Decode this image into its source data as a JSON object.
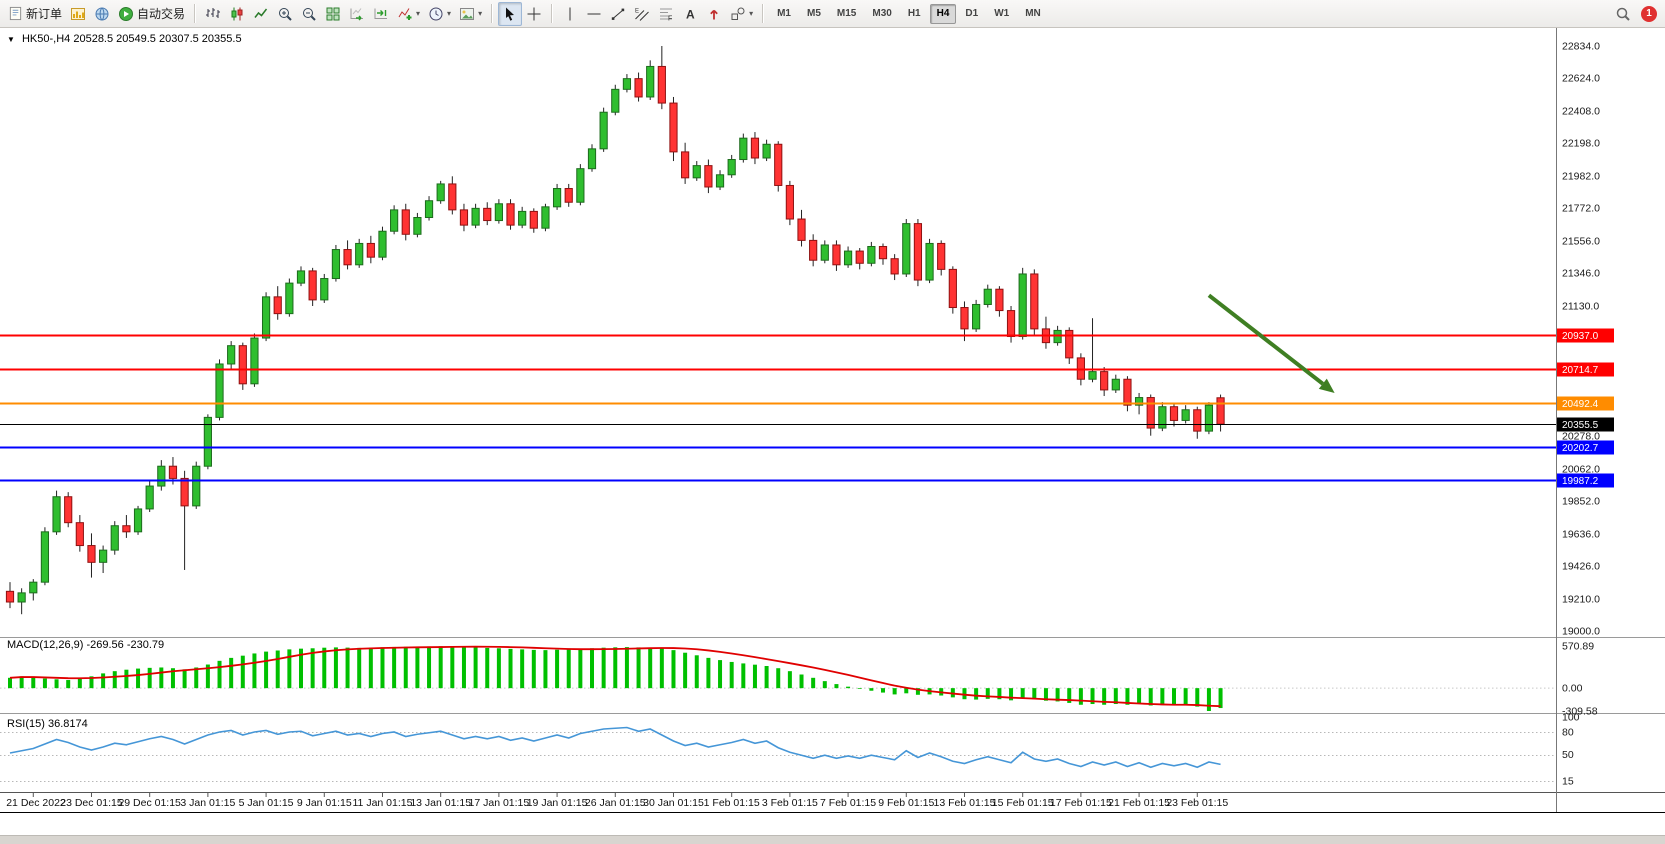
{
  "toolbar": {
    "new_order_label": "新订单",
    "autotrading_label": "自动交易",
    "timeframes": [
      "M1",
      "M5",
      "M15",
      "M30",
      "H1",
      "H4",
      "D1",
      "W1",
      "MN"
    ],
    "active_timeframe": "H4",
    "notification_count": "1"
  },
  "icons": {
    "collapse": "▼",
    "caret": "▾"
  },
  "chart": {
    "symbol_label": "HK50-,H4",
    "ohlc_text": "20528.5 20549.5 20307.5 20355.5"
  },
  "indicator_labels": {
    "macd": "MACD(12,26,9) -269.56 -230.79",
    "rsi": "RSI(15) 36.8174"
  },
  "chart_data": {
    "type": "candlestick",
    "symbol": "HK50-",
    "timeframe": "H4",
    "current_bar": {
      "open": 20528.5,
      "high": 20549.5,
      "low": 20307.5,
      "close": 20355.5
    },
    "colors": {
      "up": "#2fbe2f",
      "up_border": "#1d6b1d",
      "down": "#ff3333",
      "down_border": "#8f1111",
      "wick": "#222222"
    },
    "y_axis": {
      "min": 19000,
      "max": 22834,
      "visible_ticks": [
        22834,
        22624,
        22408,
        22198,
        21982,
        21772,
        21556,
        21346,
        21130,
        20278,
        20062,
        19852,
        19636,
        19426,
        19210,
        19000
      ]
    },
    "candles": [
      [
        19260,
        19320,
        19150,
        19190
      ],
      [
        19190,
        19280,
        19110,
        19250
      ],
      [
        19250,
        19340,
        19200,
        19320
      ],
      [
        19320,
        19680,
        19300,
        19650
      ],
      [
        19650,
        19920,
        19630,
        19880
      ],
      [
        19880,
        19910,
        19680,
        19710
      ],
      [
        19710,
        19760,
        19520,
        19560
      ],
      [
        19560,
        19640,
        19350,
        19450
      ],
      [
        19450,
        19560,
        19380,
        19530
      ],
      [
        19530,
        19720,
        19500,
        19690
      ],
      [
        19690,
        19760,
        19610,
        19650
      ],
      [
        19650,
        19820,
        19630,
        19800
      ],
      [
        19800,
        19980,
        19780,
        19950
      ],
      [
        19950,
        20120,
        19920,
        20080
      ],
      [
        20080,
        20140,
        19960,
        20000
      ],
      [
        20000,
        20050,
        19400,
        19820
      ],
      [
        19820,
        20110,
        19800,
        20080
      ],
      [
        20080,
        20420,
        20060,
        20400
      ],
      [
        20400,
        20780,
        20380,
        20750
      ],
      [
        20750,
        20900,
        20720,
        20870
      ],
      [
        20870,
        20890,
        20580,
        20620
      ],
      [
        20620,
        20950,
        20600,
        20920
      ],
      [
        20920,
        21220,
        20900,
        21190
      ],
      [
        21190,
        21260,
        21040,
        21080
      ],
      [
        21080,
        21310,
        21060,
        21280
      ],
      [
        21280,
        21390,
        21260,
        21360
      ],
      [
        21360,
        21380,
        21130,
        21170
      ],
      [
        21170,
        21340,
        21150,
        21310
      ],
      [
        21310,
        21530,
        21290,
        21500
      ],
      [
        21500,
        21560,
        21370,
        21400
      ],
      [
        21400,
        21570,
        21380,
        21540
      ],
      [
        21540,
        21590,
        21410,
        21450
      ],
      [
        21450,
        21650,
        21430,
        21620
      ],
      [
        21620,
        21790,
        21600,
        21760
      ],
      [
        21760,
        21800,
        21560,
        21600
      ],
      [
        21600,
        21740,
        21580,
        21710
      ],
      [
        21710,
        21850,
        21690,
        21820
      ],
      [
        21820,
        21950,
        21800,
        21930
      ],
      [
        21930,
        21980,
        21730,
        21760
      ],
      [
        21760,
        21800,
        21620,
        21660
      ],
      [
        21660,
        21800,
        21640,
        21770
      ],
      [
        21770,
        21810,
        21660,
        21690
      ],
      [
        21690,
        21830,
        21670,
        21800
      ],
      [
        21800,
        21830,
        21630,
        21660
      ],
      [
        21660,
        21780,
        21640,
        21750
      ],
      [
        21750,
        21770,
        21610,
        21640
      ],
      [
        21640,
        21800,
        21620,
        21780
      ],
      [
        21780,
        21930,
        21760,
        21900
      ],
      [
        21900,
        21930,
        21780,
        21810
      ],
      [
        21810,
        22060,
        21790,
        22030
      ],
      [
        22030,
        22190,
        22010,
        22160
      ],
      [
        22160,
        22430,
        22140,
        22400
      ],
      [
        22400,
        22580,
        22380,
        22550
      ],
      [
        22550,
        22650,
        22530,
        22620
      ],
      [
        22620,
        22660,
        22470,
        22500
      ],
      [
        22500,
        22740,
        22480,
        22700
      ],
      [
        22700,
        22834,
        22420,
        22460
      ],
      [
        22460,
        22500,
        22080,
        22140
      ],
      [
        22140,
        22200,
        21930,
        21970
      ],
      [
        21970,
        22080,
        21950,
        22050
      ],
      [
        22050,
        22090,
        21870,
        21910
      ],
      [
        21910,
        22020,
        21890,
        21990
      ],
      [
        21990,
        22120,
        21970,
        22090
      ],
      [
        22090,
        22260,
        22070,
        22230
      ],
      [
        22230,
        22270,
        22060,
        22100
      ],
      [
        22100,
        22220,
        22080,
        22190
      ],
      [
        22190,
        22210,
        21880,
        21920
      ],
      [
        21920,
        21950,
        21660,
        21700
      ],
      [
        21700,
        21760,
        21520,
        21560
      ],
      [
        21560,
        21600,
        21390,
        21430
      ],
      [
        21430,
        21560,
        21410,
        21530
      ],
      [
        21530,
        21560,
        21360,
        21400
      ],
      [
        21400,
        21520,
        21380,
        21490
      ],
      [
        21490,
        21510,
        21370,
        21410
      ],
      [
        21410,
        21550,
        21390,
        21520
      ],
      [
        21520,
        21540,
        21400,
        21440
      ],
      [
        21440,
        21470,
        21300,
        21340
      ],
      [
        21340,
        21700,
        21320,
        21670
      ],
      [
        21670,
        21700,
        21260,
        21300
      ],
      [
        21300,
        21570,
        21280,
        21540
      ],
      [
        21540,
        21560,
        21330,
        21370
      ],
      [
        21370,
        21390,
        21080,
        21120
      ],
      [
        21120,
        21160,
        20900,
        20980
      ],
      [
        20980,
        21170,
        20960,
        21140
      ],
      [
        21140,
        21270,
        21120,
        21240
      ],
      [
        21240,
        21260,
        21060,
        21100
      ],
      [
        21100,
        21130,
        20890,
        20930
      ],
      [
        20930,
        21380,
        20910,
        21340
      ],
      [
        21340,
        21370,
        20940,
        20980
      ],
      [
        20980,
        21060,
        20850,
        20890
      ],
      [
        20890,
        21000,
        20870,
        20970
      ],
      [
        20970,
        20990,
        20750,
        20790
      ],
      [
        20790,
        20820,
        20610,
        20650
      ],
      [
        20650,
        21050,
        20630,
        20700
      ],
      [
        20700,
        20730,
        20540,
        20580
      ],
      [
        20580,
        20680,
        20560,
        20650
      ],
      [
        20650,
        20670,
        20440,
        20480
      ],
      [
        20480,
        20560,
        20420,
        20530
      ],
      [
        20530,
        20550,
        20280,
        20330
      ],
      [
        20330,
        20500,
        20310,
        20470
      ],
      [
        20470,
        20490,
        20340,
        20380
      ],
      [
        20380,
        20480,
        20360,
        20450
      ],
      [
        20450,
        20470,
        20260,
        20310
      ],
      [
        20310,
        20500,
        20290,
        20480
      ],
      [
        20528.5,
        20549.5,
        20307.5,
        20355.5
      ]
    ],
    "time_labels": [
      "21 Dec 2022",
      "23 Dec 01:15",
      "29 Dec 01:15",
      "3 Jan 01:15",
      "5 Jan 01:15",
      "9 Jan 01:15",
      "11 Jan 01:15",
      "13 Jan 01:15",
      "17 Jan 01:15",
      "19 Jan 01:15",
      "26 Jan 01:15",
      "30 Jan 01:15",
      "1 Feb 01:15",
      "3 Feb 01:15",
      "7 Feb 01:15",
      "9 Feb 01:15",
      "13 Feb 01:15",
      "15 Feb 01:15",
      "17 Feb 01:15",
      "21 Feb 01:15",
      "23 Feb 01:15"
    ],
    "label_start_index": 2,
    "label_step": 5,
    "h_lines": [
      {
        "price": 20937.0,
        "label": "20937.0",
        "color": "#ff0000",
        "width": 2
      },
      {
        "price": 20714.7,
        "label": "20714.7",
        "color": "#ff0000",
        "width": 2
      },
      {
        "price": 20492.4,
        "label": "20492.4",
        "color": "#ff8c00",
        "width": 2
      },
      {
        "price": 20355.5,
        "label": "20355.5",
        "color": "#000000",
        "width": 1
      },
      {
        "price": 20202.7,
        "label": "20202.7",
        "color": "#0000ff",
        "width": 2
      },
      {
        "price": 19987.2,
        "label": "19987.2",
        "color": "#0000ff",
        "width": 2
      }
    ],
    "annotations": [
      {
        "type": "arrow",
        "color": "#3f7f23",
        "from_bar": 103,
        "from_price": 21200,
        "to_bar": 113.8,
        "to_price": 20560
      }
    ],
    "indicators": {
      "macd": {
        "params": "12,26,9",
        "current_main": -269.56,
        "current_signal": -230.79,
        "scale": [
          570.89,
          0,
          -309.58
        ],
        "histogram_color": "#00c000",
        "signal_color": "#e00000",
        "main_values": [
          140,
          160,
          150,
          130,
          120,
          110,
          130,
          160,
          200,
          230,
          250,
          265,
          275,
          280,
          270,
          255,
          280,
          320,
          370,
          410,
          440,
          470,
          495,
          510,
          525,
          535,
          540,
          548,
          552,
          549,
          545,
          548,
          553,
          558,
          560,
          562,
          565,
          568,
          570.89,
          565,
          555,
          545,
          540,
          532,
          525,
          518,
          515,
          520,
          525,
          532,
          540,
          548,
          553,
          556,
          552,
          548,
          540,
          515,
          480,
          445,
          410,
          380,
          355,
          335,
          318,
          300,
          270,
          230,
          185,
          140,
          95,
          55,
          20,
          -10,
          -35,
          -60,
          -85,
          -70,
          -90,
          -85,
          -100,
          -125,
          -150,
          -155,
          -145,
          -150,
          -165,
          -140,
          -150,
          -170,
          -180,
          -200,
          -225,
          -215,
          -225,
          -215,
          -225,
          -215,
          -235,
          -230,
          -235,
          -230,
          -250,
          -309.58,
          -269.56
        ]
      },
      "rsi": {
        "period": 15,
        "current": 36.8174,
        "scale_labels": [
          100,
          80,
          50,
          15
        ],
        "levels": [
          80,
          50,
          15
        ],
        "color": "#4596d7",
        "values": [
          52,
          55,
          58,
          64,
          70,
          66,
          60,
          56,
          60,
          65,
          63,
          67,
          71,
          74,
          70,
          64,
          70,
          76,
          80,
          82,
          76,
          80,
          82,
          77,
          80,
          81,
          75,
          78,
          81,
          76,
          78,
          74,
          78,
          80,
          74,
          77,
          79,
          81,
          76,
          71,
          74,
          71,
          74,
          69,
          72,
          68,
          72,
          76,
          72,
          78,
          81,
          84,
          85,
          86,
          81,
          84,
          76,
          68,
          62,
          65,
          60,
          63,
          66,
          70,
          65,
          68,
          59,
          53,
          49,
          45,
          49,
          45,
          48,
          45,
          49,
          46,
          43,
          55,
          46,
          52,
          47,
          41,
          38,
          43,
          47,
          43,
          39,
          53,
          44,
          41,
          44,
          38,
          34,
          40,
          36,
          40,
          34,
          39,
          33,
          38,
          35,
          38,
          33,
          40,
          36.8
        ]
      }
    }
  }
}
